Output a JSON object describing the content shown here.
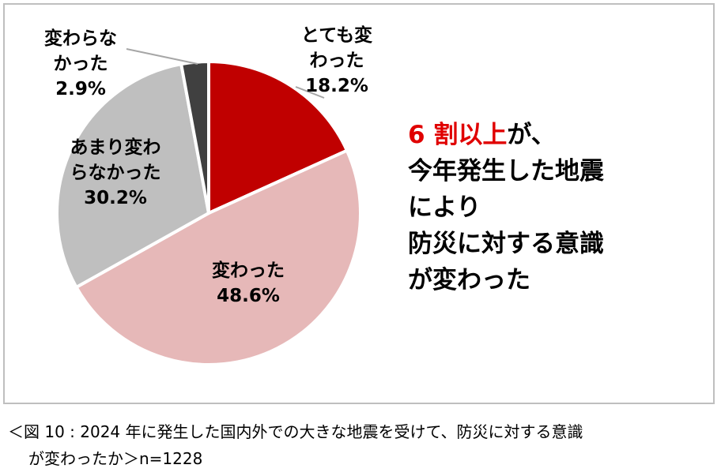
{
  "chart_data": {
    "type": "pie",
    "slices": [
      {
        "label_lines": [
          "とても変",
          "わった"
        ],
        "value": 18.2,
        "value_text": "18.2%",
        "color": "#c00000"
      },
      {
        "label_lines": [
          "変わった"
        ],
        "value": 48.6,
        "value_text": "48.6%",
        "color": "#e6b8b8"
      },
      {
        "label_lines": [
          "あまり変わ",
          "らなかった"
        ],
        "value": 30.2,
        "value_text": "30.2%",
        "color": "#bfbfbf"
      },
      {
        "label_lines": [
          "変わらな",
          "かった"
        ],
        "value": 2.9,
        "value_text": "2.9%",
        "color": "#404040"
      }
    ]
  },
  "headline": {
    "accent": "6 割以上",
    "line1_rest": "が、",
    "line2": "今年発生した地震",
    "line3": "により",
    "line4": "防災に対する意識",
    "line5": "が変わった"
  },
  "caption": {
    "line1": "＜図 10 : 2024 年に発生した国内外での大きな地震を受けて、防災に対する意識",
    "line2": "が変わったか＞n=1228"
  }
}
